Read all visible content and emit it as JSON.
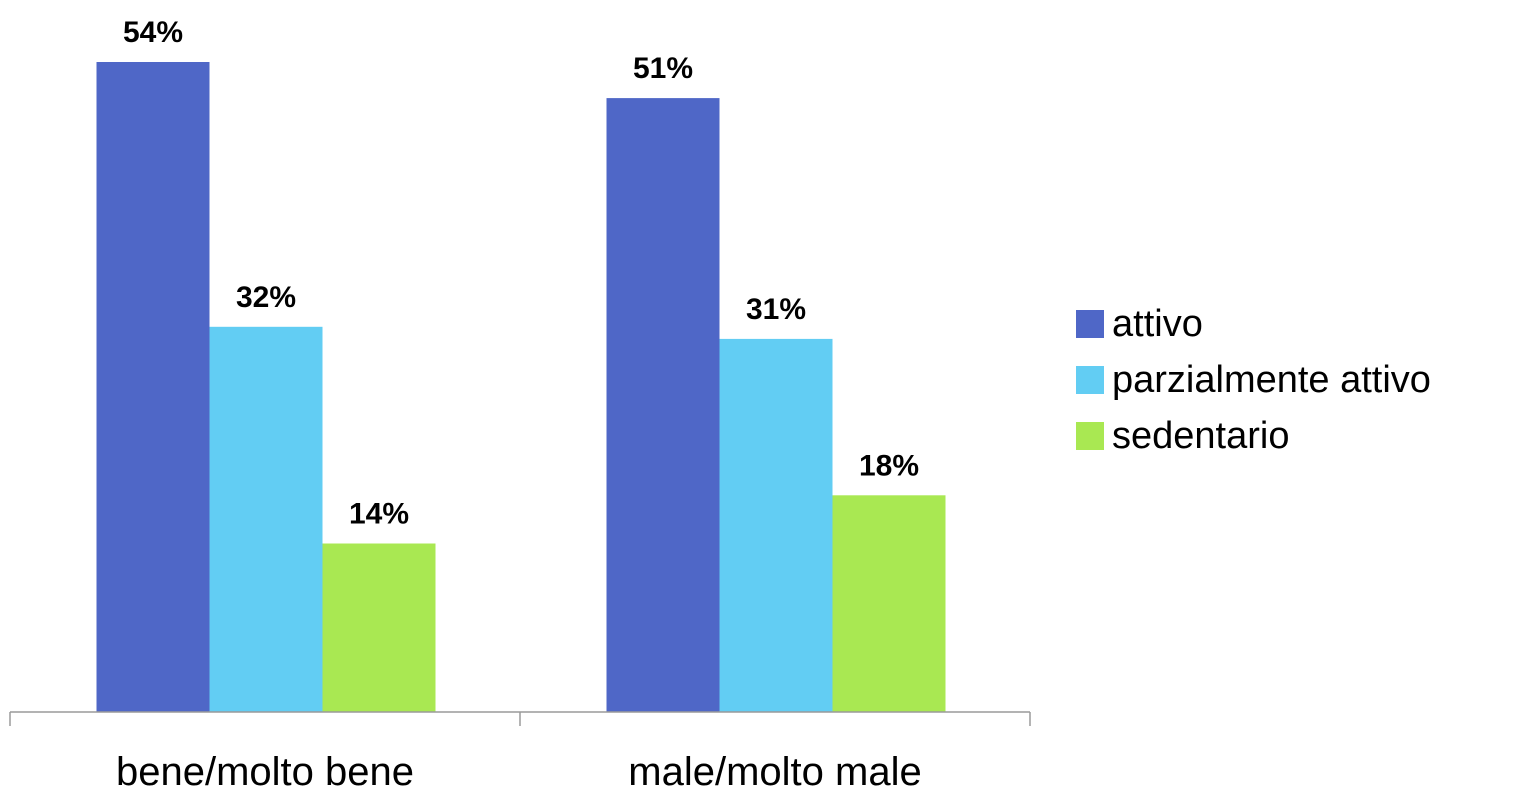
{
  "chart_data": {
    "type": "bar",
    "title": "",
    "xlabel": "",
    "ylabel": "",
    "categories": [
      "bene/molto bene",
      "male/molto male"
    ],
    "series": [
      {
        "name": "attivo",
        "values": [
          54,
          51
        ],
        "labels": [
          "54%",
          "51%"
        ],
        "color": "#4F67C7"
      },
      {
        "name": "parzialmente attivo",
        "values": [
          32,
          31
        ],
        "labels": [
          "32%",
          "31%"
        ],
        "color": "#62CDF3"
      },
      {
        "name": "sedentario",
        "values": [
          14,
          18
        ],
        "labels": [
          "14%",
          "18%"
        ],
        "color": "#A9E852"
      }
    ],
    "ylim": [
      0,
      54
    ],
    "grid": false,
    "legend_position": "right"
  }
}
